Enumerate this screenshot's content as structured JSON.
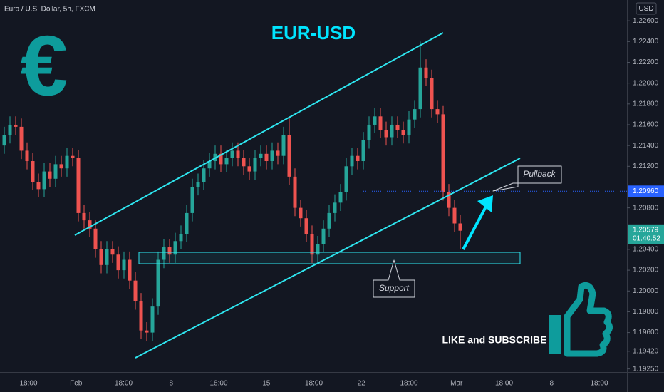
{
  "chart_data": {
    "type": "candlestick",
    "symbol_title": "Euro / U.S. Dollar, 5h, FXCM",
    "currency": "USD",
    "title": "EUR-USD",
    "icon": "€",
    "annotations": {
      "pullback": "Pullback",
      "support": "Support",
      "cta": "LIKE and SUBSCRIBE"
    },
    "up_color": "#26a69a",
    "down_color": "#ef5350",
    "x_labels": [
      "18:00",
      "Feb",
      "18:00",
      "8",
      "18:00",
      "15",
      "18:00",
      "22",
      "18:00",
      "Mar",
      "18:00",
      "8",
      "18:00"
    ],
    "ylim": [
      1.1922,
      1.228
    ],
    "yticks": [
      {
        "value": 1.226,
        "label": "1.22600"
      },
      {
        "value": 1.224,
        "label": "1.22400"
      },
      {
        "value": 1.222,
        "label": "1.22200"
      },
      {
        "value": 1.22,
        "label": "1.22000"
      },
      {
        "value": 1.218,
        "label": "1.21800"
      },
      {
        "value": 1.216,
        "label": "1.21600"
      },
      {
        "value": 1.214,
        "label": "1.21400"
      },
      {
        "value": 1.212,
        "label": "1.21200"
      },
      {
        "value": 1.208,
        "label": "1.20800"
      },
      {
        "value": 1.204,
        "label": "1.20400"
      },
      {
        "value": 1.202,
        "label": "1.20200"
      },
      {
        "value": 1.2,
        "label": "1.20000"
      },
      {
        "value": 1.198,
        "label": "1.19800"
      },
      {
        "value": 1.196,
        "label": "1.19600"
      },
      {
        "value": 1.1942,
        "label": "1.19420"
      },
      {
        "value": 1.1925,
        "label": "1.19250"
      }
    ],
    "line_price": {
      "value": 1.2096,
      "label": "1.20960"
    },
    "last_price": {
      "value": 1.20579,
      "label": "1.20579",
      "countdown": "01:40:52"
    },
    "open": [
      1.214,
      1.215,
      1.216,
      1.2158,
      1.2135,
      1.2125,
      1.2105,
      1.2098,
      1.2115,
      1.2108,
      1.2122,
      1.2118,
      1.213,
      1.2128,
      1.2075,
      1.2068,
      1.206,
      1.204,
      1.2025,
      1.204,
      1.2035,
      1.202,
      1.203,
      1.201,
      1.199,
      1.1962,
      1.196,
      1.1985,
      1.203,
      1.2042,
      1.2035,
      1.2048,
      1.2055,
      1.2075,
      1.21,
      1.2105,
      1.2118,
      1.2125,
      1.2132,
      1.2122,
      1.2128,
      1.2135,
      1.2128,
      1.212,
      1.2115,
      1.2128,
      1.2132,
      1.2125,
      1.2135,
      1.213,
      1.215,
      1.211,
      1.208,
      1.207,
      1.2055,
      1.2035,
      1.2045,
      1.206,
      1.2075,
      1.2085,
      1.2095,
      1.212,
      1.213,
      1.2125,
      1.2145,
      1.216,
      1.2168,
      1.2155,
      1.2148,
      1.216,
      1.2155,
      1.215,
      1.2165,
      1.2175,
      1.2215,
      1.2205,
      1.2175,
      1.217,
      1.2095,
      1.208,
      1.2065
    ],
    "high": [
      1.2158,
      1.2168,
      1.2168,
      1.2166,
      1.2143,
      1.2133,
      1.2113,
      1.2123,
      1.2123,
      1.213,
      1.213,
      1.2138,
      1.2138,
      1.2136,
      1.2083,
      1.2076,
      1.2068,
      1.2048,
      1.2048,
      1.2048,
      1.2043,
      1.2038,
      1.2038,
      1.2018,
      1.1998,
      1.197,
      1.1993,
      1.2038,
      1.205,
      1.205,
      1.2056,
      1.2063,
      1.2083,
      1.2108,
      1.2113,
      1.2126,
      1.2133,
      1.214,
      1.214,
      1.2136,
      1.2143,
      1.2143,
      1.2136,
      1.2128,
      1.2136,
      1.214,
      1.214,
      1.2143,
      1.2143,
      1.2158,
      1.2168,
      1.2118,
      1.2088,
      1.2078,
      1.2063,
      1.2053,
      1.2068,
      1.2083,
      1.2093,
      1.2103,
      1.2128,
      1.2138,
      1.2138,
      1.2153,
      1.2168,
      1.2176,
      1.2176,
      1.2163,
      1.2168,
      1.2168,
      1.2163,
      1.2173,
      1.2183,
      1.224,
      1.2223,
      1.2213,
      1.2183,
      1.2178,
      1.2103,
      1.2088,
      1.2073
    ],
    "low": [
      1.2132,
      1.2142,
      1.215,
      1.2127,
      1.2117,
      1.2097,
      1.209,
      1.209,
      1.21,
      1.21,
      1.211,
      1.211,
      1.212,
      1.2067,
      1.206,
      1.2052,
      1.2032,
      1.2017,
      1.2017,
      1.2027,
      1.2012,
      1.2012,
      1.2002,
      1.1982,
      1.1954,
      1.1952,
      1.1952,
      1.1977,
      1.2022,
      1.2027,
      1.2027,
      1.204,
      1.2047,
      1.2067,
      1.2092,
      1.2097,
      1.211,
      1.2117,
      1.2114,
      1.2114,
      1.212,
      1.212,
      1.2112,
      1.2107,
      1.2107,
      1.212,
      1.2117,
      1.2117,
      1.2122,
      1.2122,
      1.2102,
      1.2072,
      1.2062,
      1.2047,
      1.2027,
      1.2027,
      1.2037,
      1.2052,
      1.2067,
      1.2077,
      1.2087,
      1.2112,
      1.2117,
      1.2117,
      1.2137,
      1.2152,
      1.2147,
      1.214,
      1.214,
      1.2147,
      1.2142,
      1.2142,
      1.2157,
      1.2167,
      1.2197,
      1.2167,
      1.2162,
      1.2087,
      1.2072,
      1.2057,
      1.204
    ],
    "close": [
      1.215,
      1.216,
      1.2158,
      1.2135,
      1.2125,
      1.2105,
      1.2098,
      1.2115,
      1.2108,
      1.2122,
      1.2118,
      1.213,
      1.2128,
      1.2075,
      1.2068,
      1.206,
      1.204,
      1.2025,
      1.204,
      1.2035,
      1.202,
      1.203,
      1.201,
      1.199,
      1.1962,
      1.196,
      1.1985,
      1.203,
      1.2042,
      1.2035,
      1.2048,
      1.2055,
      1.2075,
      1.21,
      1.2105,
      1.2118,
      1.2125,
      1.2132,
      1.2122,
      1.2128,
      1.2135,
      1.2128,
      1.212,
      1.2115,
      1.2128,
      1.2132,
      1.2125,
      1.2135,
      1.213,
      1.215,
      1.211,
      1.208,
      1.207,
      1.2055,
      1.2035,
      1.2045,
      1.206,
      1.2075,
      1.2085,
      1.2095,
      1.212,
      1.213,
      1.2125,
      1.2145,
      1.216,
      1.2168,
      1.2155,
      1.2148,
      1.216,
      1.2155,
      1.215,
      1.2165,
      1.2175,
      1.2215,
      1.2205,
      1.2175,
      1.217,
      1.2095,
      1.208,
      1.2065,
      1.2058
    ]
  }
}
